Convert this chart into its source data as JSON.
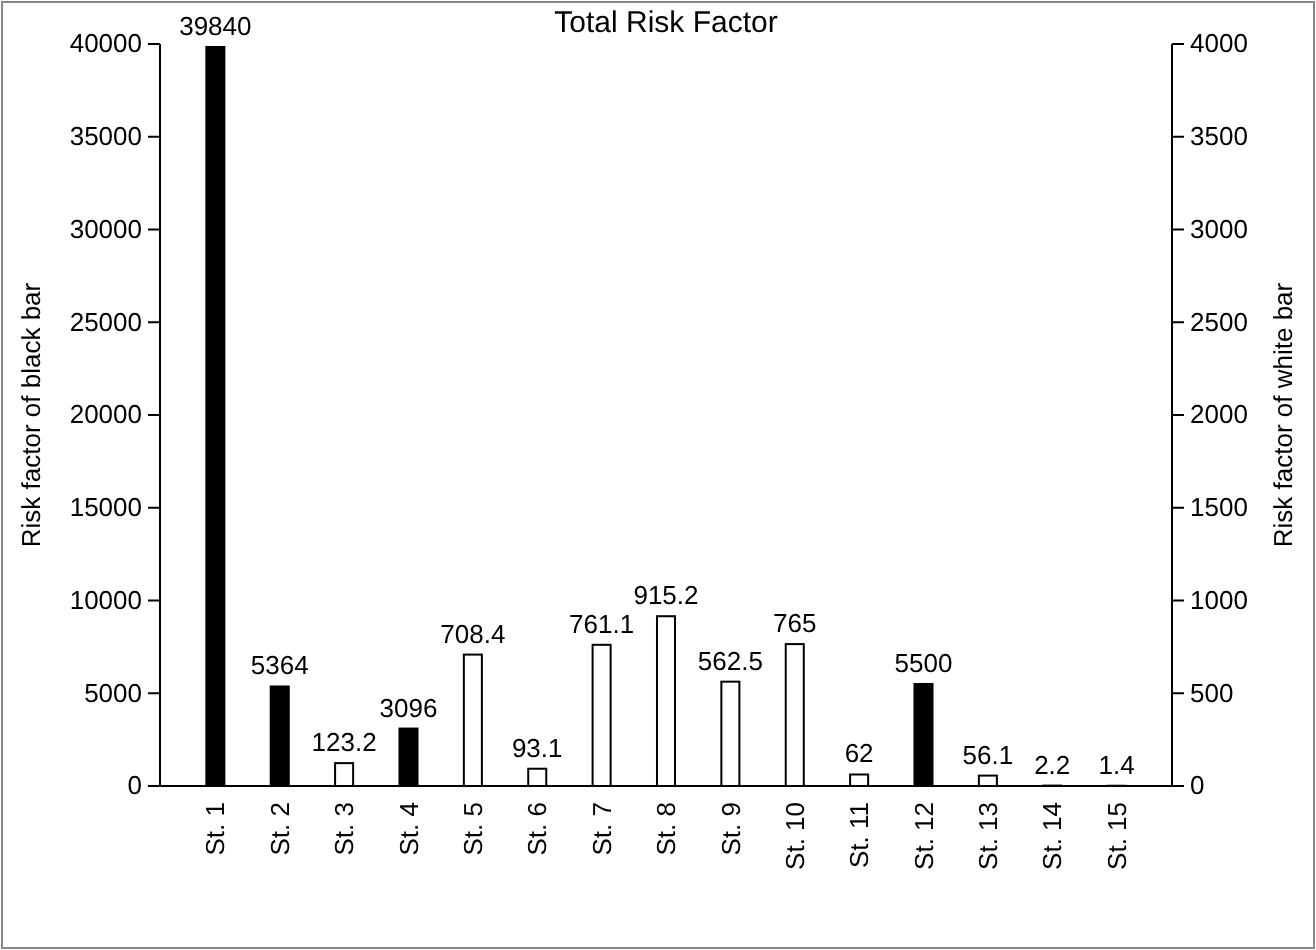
{
  "chart_data": {
    "type": "bar",
    "title": "Total Risk Factor",
    "ylabel": "Risk factor of black bar",
    "y2label": "Risk factor of white bar",
    "categories": [
      "St. 1",
      "St. 2",
      "St. 3",
      "St. 4",
      "St. 5",
      "St. 6",
      "St. 7",
      "St. 8",
      "St. 9",
      "St. 10",
      "St. 11",
      "St. 12",
      "St. 13",
      "St. 14",
      "St. 15"
    ],
    "series": [
      {
        "color": "#000000",
        "values": [
          39840,
          5364,
          null,
          3096,
          null,
          null,
          null,
          null,
          null,
          null,
          null,
          5500,
          null,
          null,
          null
        ]
      },
      {
        "color": "#ffffff",
        "axis": "y2",
        "values": [
          null,
          null,
          123.2,
          null,
          708.4,
          93.1,
          761.1,
          915.2,
          562.5,
          765,
          62,
          null,
          56.1,
          2.2,
          1.4
        ]
      }
    ],
    "ylim": [
      0,
      40000
    ],
    "yticks": [
      0,
      5000,
      10000,
      15000,
      20000,
      25000,
      30000,
      35000,
      40000
    ],
    "y2lim": [
      0,
      4000
    ],
    "y2ticks": [
      0,
      500,
      1000,
      1500,
      2000,
      2500,
      3000,
      3500,
      4000
    ],
    "data_labels": true,
    "grid": false
  }
}
